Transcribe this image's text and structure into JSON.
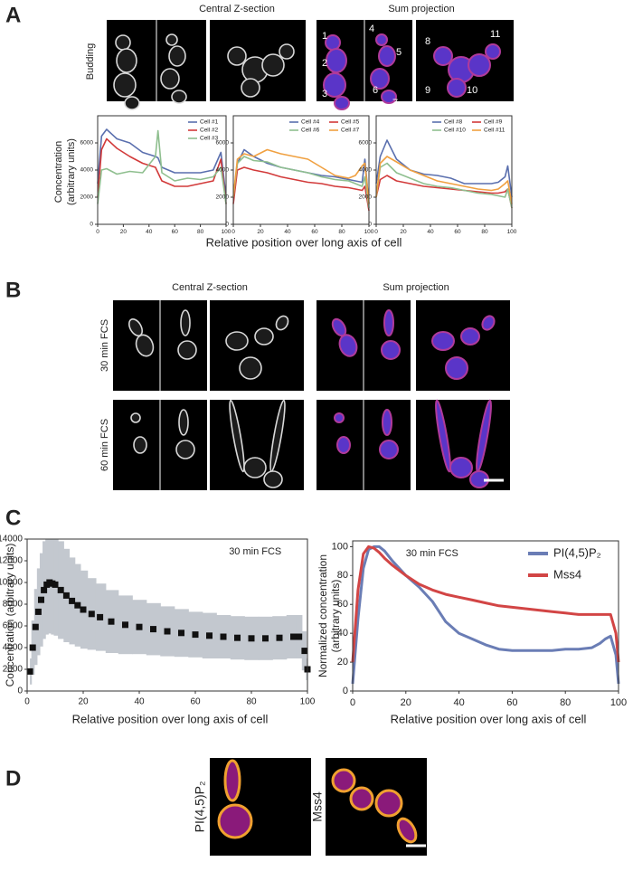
{
  "labels": {
    "panels": [
      "A",
      "B",
      "C",
      "D"
    ],
    "a": {
      "header_left": "Central Z-section",
      "header_right": "Sum projection",
      "row": "Budding",
      "cell_numbers": [
        "1",
        "2",
        "3",
        "4",
        "5",
        "6",
        "7",
        "8",
        "9",
        "10",
        "11"
      ],
      "y_label": [
        "Concentration",
        "(arbitrary units)"
      ],
      "x_label": "Relative position over long axis of cell"
    },
    "b": {
      "header_left": "Central Z-section",
      "header_right": "Sum projection",
      "rows": [
        "30 min FCS",
        "60 min FCS"
      ]
    },
    "d": {
      "rows": [
        "PI(4,5)P₂",
        "Mss4"
      ]
    }
  },
  "chart_data": [
    {
      "type": "line",
      "x": [
        0,
        3,
        7,
        15,
        25,
        35,
        45,
        47,
        50,
        60,
        70,
        80,
        90,
        96,
        100
      ],
      "xlim": [
        0,
        100
      ],
      "ylim": [
        0,
        8000
      ],
      "xticks": [
        0,
        20,
        40,
        60,
        80,
        100
      ],
      "yticks": [
        0,
        2000,
        4000,
        6000
      ],
      "series": [
        {
          "name": "Cell #1",
          "color": "#5a6fae",
          "values": [
            3000,
            6500,
            7000,
            6300,
            6000,
            5300,
            5000,
            4900,
            4200,
            3800,
            3800,
            3800,
            4000,
            5300,
            2000
          ]
        },
        {
          "name": "Cell #2",
          "color": "#d23a3a",
          "values": [
            2000,
            5500,
            6300,
            5600,
            5000,
            4500,
            4200,
            3800,
            3200,
            2800,
            2800,
            3000,
            3200,
            4800,
            1500
          ]
        },
        {
          "name": "Cell #3",
          "color": "#8fbf8f",
          "values": [
            1500,
            4000,
            4100,
            3700,
            3900,
            3800,
            5000,
            6900,
            3800,
            3200,
            3400,
            3300,
            3500,
            4200,
            1500
          ]
        }
      ]
    },
    {
      "type": "line",
      "x": [
        0,
        3,
        8,
        15,
        25,
        35,
        45,
        55,
        65,
        75,
        85,
        90,
        95,
        97,
        100
      ],
      "xlim": [
        0,
        100
      ],
      "ylim": [
        0,
        8000
      ],
      "xticks": [
        0,
        20,
        40,
        60,
        80,
        100
      ],
      "yticks": [
        0,
        2000,
        4000,
        6000
      ],
      "series": [
        {
          "name": "Cell #4",
          "color": "#5a6fae",
          "values": [
            2000,
            4500,
            5500,
            5000,
            4500,
            4200,
            4000,
            3800,
            3600,
            3500,
            3300,
            3200,
            3100,
            4800,
            1500
          ]
        },
        {
          "name": "Cell #5",
          "color": "#d23a3a",
          "values": [
            1500,
            4000,
            4200,
            4000,
            3800,
            3500,
            3300,
            3100,
            3000,
            2800,
            2700,
            2600,
            2500,
            2800,
            1000
          ]
        },
        {
          "name": "Cell #6",
          "color": "#8fbf8f",
          "values": [
            2000,
            4500,
            5000,
            4700,
            4600,
            4200,
            4000,
            3800,
            3500,
            3300,
            3200,
            3000,
            2800,
            3500,
            1200
          ]
        },
        {
          "name": "Cell #7",
          "color": "#f0a040",
          "values": [
            2000,
            4800,
            5200,
            5000,
            5500,
            5200,
            5000,
            4800,
            4200,
            3600,
            3400,
            3600,
            4300,
            4500,
            1500
          ]
        }
      ]
    },
    {
      "type": "line",
      "x": [
        0,
        3,
        8,
        15,
        25,
        35,
        45,
        55,
        65,
        75,
        85,
        90,
        95,
        97,
        100
      ],
      "xlim": [
        0,
        100
      ],
      "ylim": [
        0,
        8000
      ],
      "xticks": [
        0,
        20,
        40,
        60,
        80,
        100
      ],
      "yticks": [
        0,
        2000,
        4000,
        6000
      ],
      "series": [
        {
          "name": "Cell #8",
          "color": "#5a6fae",
          "values": [
            3000,
            5000,
            6200,
            4800,
            4000,
            3700,
            3600,
            3400,
            3000,
            3000,
            3000,
            3100,
            3500,
            4300,
            2000
          ]
        },
        {
          "name": "Cell #9",
          "color": "#d23a3a",
          "values": [
            2000,
            3300,
            3600,
            3200,
            3000,
            2800,
            2700,
            2600,
            2500,
            2400,
            2300,
            2300,
            2400,
            2600,
            1200
          ]
        },
        {
          "name": "Cell #10",
          "color": "#8fbf8f",
          "values": [
            2000,
            4200,
            4500,
            3800,
            3400,
            3000,
            2800,
            2700,
            2500,
            2300,
            2200,
            2100,
            2000,
            2600,
            1200
          ]
        },
        {
          "name": "Cell #11",
          "color": "#f0a040",
          "values": [
            2000,
            4500,
            5000,
            4600,
            4000,
            3600,
            3200,
            3000,
            2800,
            2600,
            2500,
            2600,
            3000,
            3200,
            1500
          ]
        }
      ]
    },
    {
      "type": "scatter",
      "annotation": "30 min FCS",
      "x_label": "Relative position over long axis of cell",
      "y_label": "Concentration (arbitrary units)",
      "x": [
        1,
        2,
        3,
        4,
        5,
        6,
        7,
        8,
        9,
        10,
        12,
        14,
        16,
        18,
        20,
        23,
        26,
        30,
        35,
        40,
        45,
        50,
        55,
        60,
        65,
        70,
        75,
        80,
        85,
        90,
        95,
        97,
        99,
        100
      ],
      "xlim": [
        0,
        100
      ],
      "ylim": [
        0,
        14000
      ],
      "xticks": [
        0,
        20,
        40,
        60,
        80,
        100
      ],
      "yticks": [
        0,
        2000,
        4000,
        6000,
        8000,
        10000,
        12000,
        14000
      ],
      "series": [
        {
          "color": "#111111",
          "band_color": "#c3c8cf",
          "values": [
            1800,
            4000,
            5900,
            7300,
            8400,
            9300,
            9800,
            10000,
            9900,
            9800,
            9300,
            8800,
            8300,
            7900,
            7500,
            7100,
            6800,
            6400,
            6100,
            5900,
            5700,
            5500,
            5350,
            5200,
            5100,
            5000,
            4900,
            4850,
            4850,
            4900,
            5000,
            5000,
            3700,
            2000
          ],
          "errors": [
            1200,
            2500,
            3500,
            4000,
            4300,
            4500,
            4600,
            4700,
            4700,
            4700,
            4500,
            4300,
            4000,
            3800,
            3600,
            3300,
            3100,
            2900,
            2700,
            2500,
            2400,
            2300,
            2200,
            2100,
            2100,
            2000,
            2000,
            2000,
            2000,
            2000,
            2000,
            2000,
            1800,
            1000
          ]
        }
      ]
    },
    {
      "type": "line",
      "annotation": "30 min FCS",
      "x_label": "Relative position over long axis of cell",
      "y_label": [
        "Normalized concentration",
        "(arbitrary units)"
      ],
      "x": [
        0,
        2,
        4,
        6,
        8,
        10,
        12,
        15,
        20,
        25,
        30,
        35,
        40,
        45,
        50,
        55,
        60,
        65,
        70,
        75,
        80,
        85,
        90,
        93,
        95,
        97,
        99,
        100
      ],
      "xlim": [
        0,
        100
      ],
      "ylim": [
        0,
        104
      ],
      "xticks": [
        0,
        20,
        40,
        60,
        80,
        100
      ],
      "yticks": [
        0,
        20,
        40,
        60,
        80,
        100
      ],
      "series": [
        {
          "name": "PI(4,5)P₂",
          "color": "#6a7db5",
          "values": [
            5,
            50,
            85,
            98,
            100,
            100,
            97,
            90,
            80,
            72,
            62,
            48,
            40,
            36,
            32,
            29,
            28,
            28,
            28,
            28,
            29,
            29,
            30,
            33,
            36,
            38,
            25,
            5
          ]
        },
        {
          "name": "Mss4",
          "color": "#d24545",
          "values": [
            20,
            70,
            95,
            100,
            99,
            96,
            92,
            87,
            80,
            74,
            70,
            67,
            65,
            63,
            61,
            59,
            58,
            57,
            56,
            55,
            54,
            53,
            53,
            53,
            53,
            53,
            40,
            20
          ]
        }
      ]
    }
  ]
}
